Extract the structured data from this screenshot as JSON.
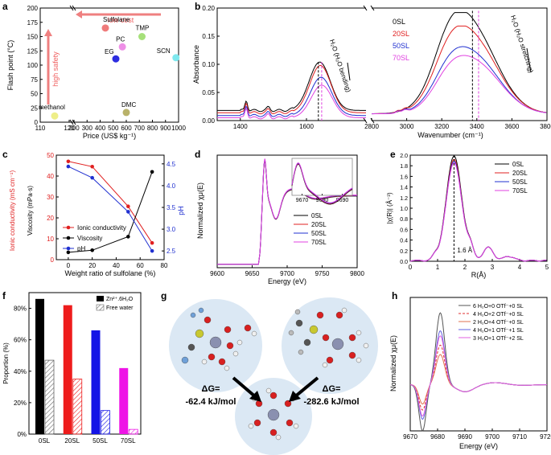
{
  "panels": {
    "a": {
      "letter": "a",
      "chart_data": {
        "type": "scatter",
        "xlabel": "Price (US$ kg⁻¹)",
        "ylabel": "Flash point (°C)",
        "xticks": [
          "110",
          "120",
          "200",
          "300",
          "400",
          "500",
          "600",
          "700",
          "800",
          "900",
          "1000"
        ],
        "yticks": [
          "0",
          "25",
          "50",
          "75",
          "100",
          "125",
          "150",
          "175",
          "200"
        ],
        "ylim": [
          0,
          200
        ],
        "points": [
          {
            "label": "Sulfolane",
            "x": 440,
            "y": 165,
            "color": "#ef7b7b"
          },
          {
            "label": "TMP",
            "x": 720,
            "y": 150,
            "color": "#a6e07a"
          },
          {
            "label": "PC",
            "x": 570,
            "y": 132,
            "color": "#ee8fe6"
          },
          {
            "label": "EG",
            "x": 520,
            "y": 111,
            "color": "#2d2de0"
          },
          {
            "label": "SCN",
            "x": 980,
            "y": 113,
            "color": "#7fe8ee"
          },
          {
            "label": "DMC",
            "x": 600,
            "y": 17,
            "color": "#b9b26a"
          },
          {
            "label": "methanol",
            "x": 115,
            "y": 11,
            "color": "#eeee88"
          }
        ],
        "annotations": {
          "low_cost": "low cost",
          "high_safety": "high safety"
        }
      }
    },
    "b": {
      "letter": "b",
      "chart_data": {
        "type": "line",
        "xlabel": "Wavenumber (cm⁻¹)",
        "ylabel": "Absorbance",
        "yticks": [
          "0.00",
          "0.05",
          "0.10",
          "0.15",
          "0.20"
        ],
        "ylim": [
          0,
          0.2
        ],
        "xticks_left": [
          "1400",
          "1600"
        ],
        "xticks_right": [
          "2800",
          "3000",
          "3200",
          "3400",
          "3600",
          "3800"
        ],
        "xlim_left": [
          1330,
          1780
        ],
        "xlim_right": [
          2800,
          3800
        ],
        "series": [
          {
            "name": "0SL",
            "color": "#000000",
            "base": 0.018,
            "bend": 0.104,
            "stretch": 0.192
          },
          {
            "name": "20SL",
            "color": "#e02020",
            "base": 0.014,
            "bend": 0.098,
            "stretch": 0.168
          },
          {
            "name": "50SL",
            "color": "#2030d0",
            "base": 0.009,
            "bend": 0.077,
            "stretch": 0.132
          },
          {
            "name": "70SL",
            "color": "#e040e0",
            "base": 0.005,
            "bend": 0.063,
            "stretch": 0.118
          }
        ],
        "annotations": {
          "bending": "H₂O (H₂O bending)",
          "stretching": "H₂O (H₂O stretching)"
        }
      }
    },
    "c": {
      "letter": "c",
      "chart_data": {
        "type": "line",
        "xlabel": "Weight ratio of sulfolane (%)",
        "ylabel_left1": "Ionic conductivity (mS cm⁻¹)",
        "ylabel_left2": "Viscosity (mPa·s)",
        "ylabel_right": "pH",
        "x": [
          0,
          20,
          50,
          70
        ],
        "xticks": [
          "0",
          "20",
          "40",
          "60",
          "80"
        ],
        "yticks_left": [
          "0",
          "10",
          "20",
          "30",
          "40",
          "50"
        ],
        "yticks_right": [
          "2.5",
          "3.0",
          "3.5",
          "4.0",
          "4.5"
        ],
        "ylim_left": [
          0,
          50
        ],
        "ylim_right": [
          2.3,
          4.7
        ],
        "series": [
          {
            "name": "Ionic conductivity",
            "color": "#e02020",
            "axis": "left",
            "values": [
              47,
              44.5,
              25.5,
              8
            ]
          },
          {
            "name": "Viscosity",
            "color": "#000000",
            "axis": "left",
            "values": [
              3.5,
              4.5,
              11,
              42
            ]
          },
          {
            "name": "pH",
            "color": "#2030d0",
            "axis": "right",
            "values": [
              4.44,
              4.18,
              3.4,
              2.5
            ]
          }
        ]
      }
    },
    "d": {
      "letter": "d",
      "chart_data": {
        "type": "line",
        "xlabel": "Energy (eV)",
        "ylabel": "Normalized χμ(E)",
        "xticks": [
          "9600",
          "9650",
          "9700",
          "9750",
          "9800"
        ],
        "xlim": [
          9600,
          9800
        ],
        "inset_xticks": [
          "9670",
          "9680",
          "9690"
        ],
        "series": [
          {
            "name": "0SL",
            "color": "#000000"
          },
          {
            "name": "20SL",
            "color": "#e02020"
          },
          {
            "name": "50SL",
            "color": "#2030d0"
          },
          {
            "name": "70SL",
            "color": "#e040e0"
          }
        ]
      }
    },
    "e": {
      "letter": "e",
      "chart_data": {
        "type": "line",
        "xlabel": "R(Å)",
        "ylabel": "|χ(R)| (Å⁻³)",
        "xticks": [
          "0",
          "1",
          "2",
          "3",
          "4",
          "5"
        ],
        "yticks": [
          "0.0",
          "0.2",
          "0.4",
          "0.6",
          "0.8",
          "1.0",
          "1.2",
          "1.4",
          "1.6",
          "1.8",
          "2.0"
        ],
        "xlim": [
          0,
          5
        ],
        "ylim": [
          0,
          2.0
        ],
        "peak_label": "1.6 Å",
        "series": [
          {
            "name": "0SL",
            "color": "#000000"
          },
          {
            "name": "20SL",
            "color": "#e02020"
          },
          {
            "name": "50SL",
            "color": "#2030d0"
          },
          {
            "name": "70SL",
            "color": "#e040e0"
          }
        ]
      }
    },
    "f": {
      "letter": "f",
      "chart_data": {
        "type": "bar",
        "ylabel": "Proportion (%)",
        "categories": [
          "0SL",
          "20SL",
          "50SL",
          "70SL"
        ],
        "colors": [
          "#000000",
          "#ee1c1c",
          "#1414e6",
          "#ee14e6"
        ],
        "yticks": [
          "0%",
          "20%",
          "40%",
          "60%",
          "80%"
        ],
        "ylim": [
          0,
          90
        ],
        "series": [
          {
            "name": "Zn²⁺.6H₂O",
            "values": [
              86,
              82,
              66,
              42
            ]
          },
          {
            "name": "Free water",
            "values": [
              47,
              35,
              15,
              3
            ]
          }
        ]
      }
    },
    "g": {
      "letter": "g",
      "dg_left_label": "ΔG=",
      "dg_left_value": "-62.4 kJ/mol",
      "dg_right_label": "ΔG=",
      "dg_right_value": "-282.6 kJ/mol"
    },
    "h": {
      "letter": "h",
      "chart_data": {
        "type": "line",
        "xlabel": "Energy (eV)",
        "ylabel": "Normalized χμ(E)",
        "xticks": [
          "9670",
          "9680",
          "9690",
          "9700",
          "9710",
          "9720"
        ],
        "xlim": [
          9670,
          9720
        ],
        "series": [
          {
            "name": "6 H₂O+0 OTf⁻+0 SL",
            "color": "#555555",
            "peak": 1.0,
            "dash": false
          },
          {
            "name": "4 H₂O+2 OTf⁻+0 SL",
            "color": "#e03030",
            "peak": 0.55,
            "dash": true
          },
          {
            "name": "2 H₂O+4 OTf⁻+0 SL",
            "color": "#e07050",
            "peak": 0.42,
            "dash": false
          },
          {
            "name": "4 H₂O+1 OTf⁻+1 SL",
            "color": "#6060e0",
            "peak": 0.75,
            "dash": false
          },
          {
            "name": "3 H₂O+1 OTf⁻+2 SL",
            "color": "#e060e0",
            "peak": 0.68,
            "dash": false
          }
        ]
      }
    }
  }
}
